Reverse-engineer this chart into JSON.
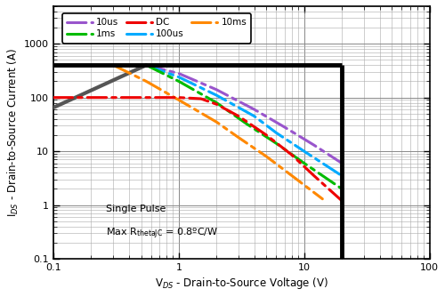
{
  "title": "",
  "xlabel": "V$_{DS}$ - Drain-to-Source Voltage (V)",
  "ylabel": "I$_{DS}$ - Drain-to-Source Current (A)",
  "xlim": [
    0.1,
    100
  ],
  "ylim": [
    0.1,
    5000
  ],
  "annotation_line1": "Single Pulse",
  "annotation_line2": "Max R$_{\\mathrm{thetaJC}}$ = 0.8ºC/W",
  "curves": [
    {
      "label": "10us",
      "color": "#9955CC",
      "x": [
        0.55,
        1.0,
        2.0,
        4.0,
        7.0,
        12.0,
        20.0
      ],
      "y": [
        400,
        280,
        140,
        60,
        28,
        13,
        6
      ]
    },
    {
      "label": "100us",
      "color": "#00AAFF",
      "x": [
        0.55,
        1.0,
        2.0,
        4.0,
        6.0,
        10.0,
        20.0
      ],
      "y": [
        400,
        240,
        110,
        45,
        22,
        10,
        3.5
      ]
    },
    {
      "label": "1ms",
      "color": "#00BB00",
      "x": [
        0.55,
        1.0,
        2.0,
        3.5,
        6.0,
        10.0,
        20.0
      ],
      "y": [
        400,
        200,
        80,
        32,
        14,
        6,
        2.0
      ]
    },
    {
      "label": "10ms",
      "color": "#FF8800",
      "x": [
        0.3,
        0.55,
        1.0,
        2.0,
        3.0,
        5.0,
        8.0,
        14.0
      ],
      "y": [
        400,
        200,
        90,
        35,
        18,
        8,
        3.5,
        1.3
      ]
    },
    {
      "label": "DC",
      "color": "#EE0000",
      "x": [
        0.1,
        0.5,
        1.0,
        1.5,
        2.0,
        3.0,
        5.0,
        8.0,
        12.0,
        20.0
      ],
      "y": [
        100,
        100,
        100,
        95,
        75,
        45,
        20,
        8.5,
        3.5,
        1.2
      ]
    }
  ],
  "rds_line": {
    "x": [
      0.1,
      0.55
    ],
    "y": [
      65,
      400
    ],
    "color": "#555555",
    "linewidth": 3.0
  },
  "soa_top_line": {
    "x": [
      0.1,
      20.0
    ],
    "y": [
      400,
      400
    ]
  },
  "soa_right_line": {
    "x": [
      20.0,
      20.0
    ],
    "y": [
      0.1,
      400
    ]
  },
  "legend_order": [
    "10us",
    "1ms",
    "DC",
    "100us",
    "10ms"
  ],
  "legend_colors": [
    "#9955CC",
    "#00BB00",
    "#EE0000",
    "#00AAFF",
    "#FF8800"
  ],
  "grid_color": "#AAAAAA",
  "grid_color_major": "#888888",
  "background": "#FFFFFF",
  "border_color": "#000000"
}
